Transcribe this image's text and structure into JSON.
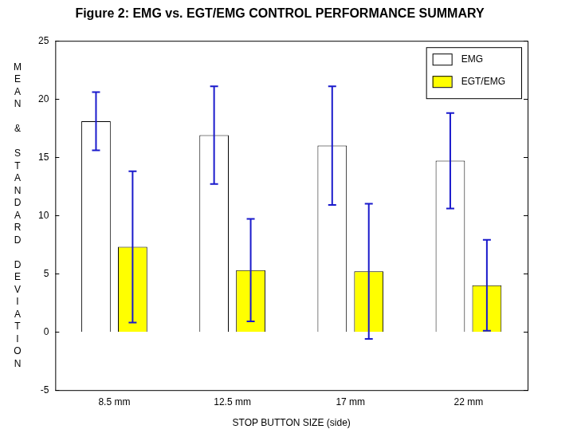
{
  "chart_data": {
    "type": "bar",
    "title": "Figure 2: EMG vs. EGT/EMG CONTROL PERFORMANCE SUMMARY",
    "x_label": "STOP BUTTON SIZE (side)",
    "y_label": "MEAN & STANDARD DEVIATION",
    "categories": [
      "8.5 mm",
      "12.5 mm",
      "17 mm",
      "22 mm"
    ],
    "series": [
      {
        "name": "EMG",
        "color": "#ffffff",
        "values": [
          18.1,
          16.9,
          16.0,
          14.7
        ],
        "std": [
          2.5,
          4.2,
          5.1,
          4.1
        ]
      },
      {
        "name": "EGT/EMG",
        "color": "#ffff00",
        "values": [
          7.3,
          5.3,
          5.2,
          4.0
        ],
        "std": [
          6.5,
          4.4,
          5.8,
          3.9
        ]
      }
    ],
    "ylim": [
      -5,
      25
    ],
    "yticks": [
      -5,
      0,
      5,
      10,
      15,
      20,
      25
    ],
    "grid": false,
    "legend": "upper right"
  }
}
